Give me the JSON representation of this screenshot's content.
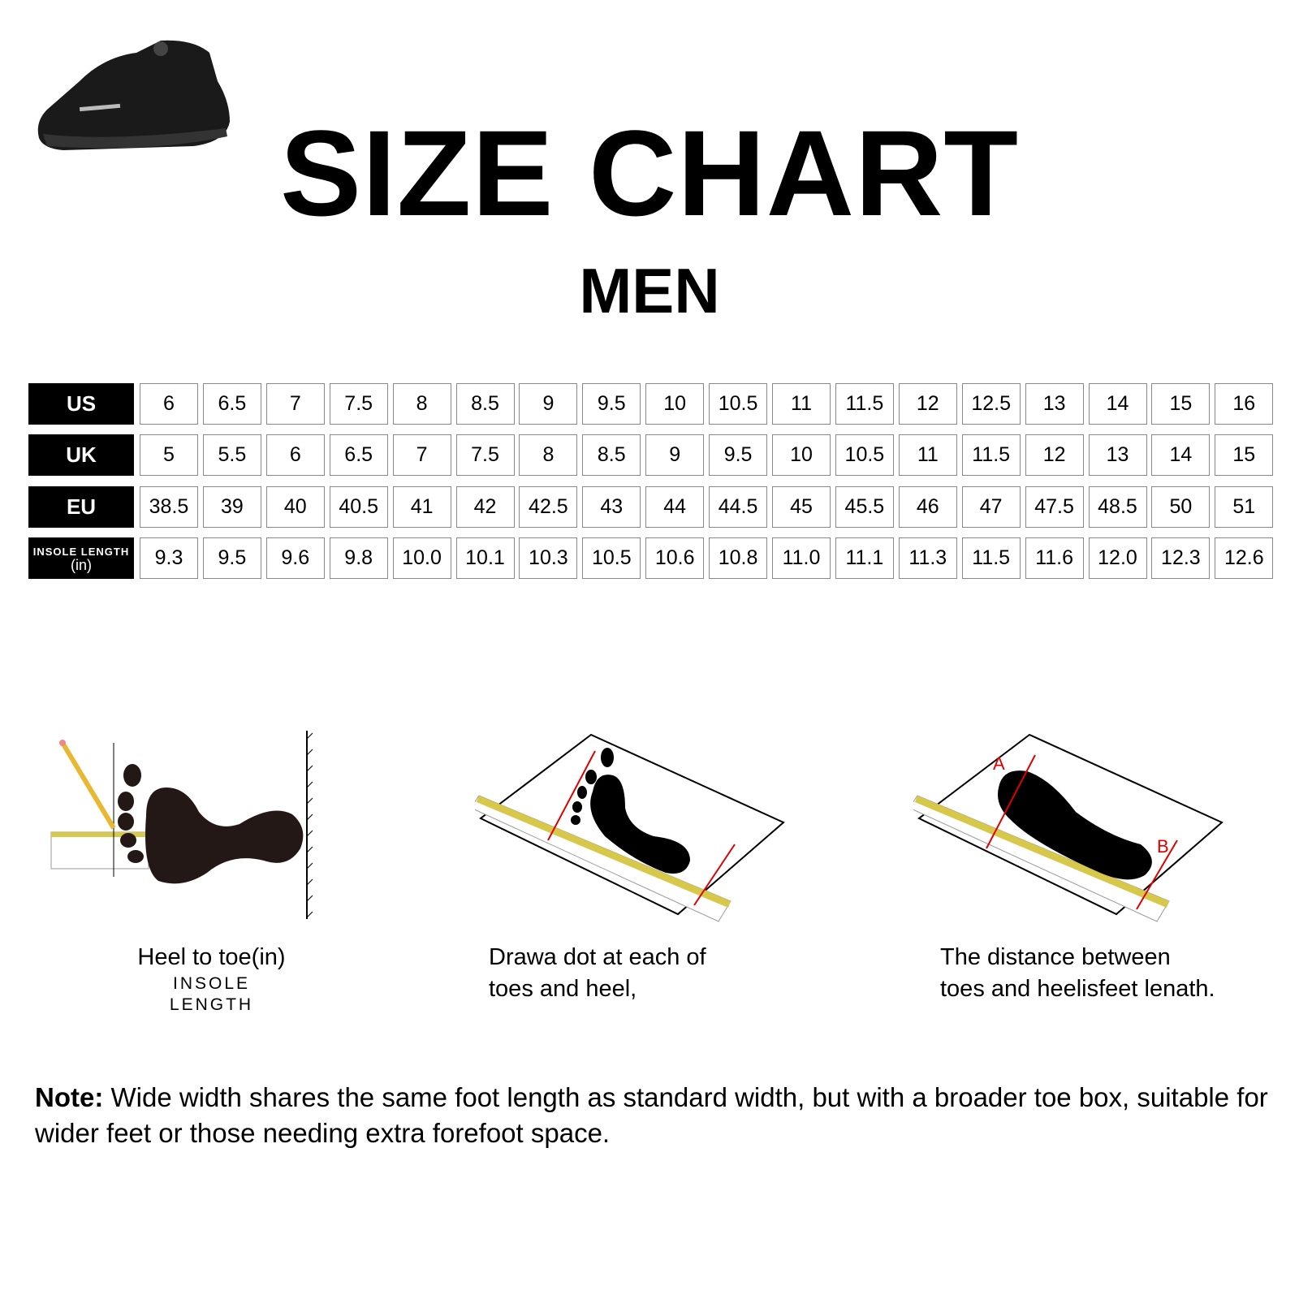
{
  "title": "SIZE CHART",
  "subtitle": "MEN",
  "table": {
    "rows": [
      {
        "label": "US",
        "values": [
          "6",
          "6.5",
          "7",
          "7.5",
          "8",
          "8.5",
          "9",
          "9.5",
          "10",
          "10.5",
          "11",
          "11.5",
          "12",
          "12.5",
          "13",
          "14",
          "15",
          "16"
        ]
      },
      {
        "label": "UK",
        "values": [
          "5",
          "5.5",
          "6",
          "6.5",
          "7",
          "7.5",
          "8",
          "8.5",
          "9",
          "9.5",
          "10",
          "10.5",
          "11",
          "11.5",
          "12",
          "13",
          "14",
          "15"
        ]
      },
      {
        "label": "EU",
        "values": [
          "38.5",
          "39",
          "40",
          "40.5",
          "41",
          "42",
          "42.5",
          "43",
          "44",
          "44.5",
          "45",
          "45.5",
          "46",
          "47",
          "47.5",
          "48.5",
          "50",
          "51"
        ]
      },
      {
        "label": "INSOLE LENGTH",
        "unit": "(in)",
        "values": [
          "9.3",
          "9.5",
          "9.6",
          "9.8",
          "10.0",
          "10.1",
          "10.3",
          "10.5",
          "10.6",
          "10.8",
          "11.0",
          "11.1",
          "11.3",
          "11.5",
          "11.6",
          "12.0",
          "12.3",
          "12.6"
        ]
      }
    ]
  },
  "steps": [
    {
      "line1": "Heel to toe(in)",
      "line2": "INSOLE LENGTH"
    },
    {
      "line1": "Drawa dot at each of",
      "line2": "toes and heel,"
    },
    {
      "line1": "The distance between",
      "line2": "toes and heelisfeet lenath.",
      "marker_a": "A",
      "marker_b": "B"
    }
  ],
  "note": {
    "label": "Note:",
    "text": " Wide width shares the same foot length as standard width, but with a broader toe box, suitable for wider feet or those needing extra forefoot space."
  },
  "colors": {
    "accent_red": "#e00000",
    "ruler_yellow": "#d8c84a"
  }
}
